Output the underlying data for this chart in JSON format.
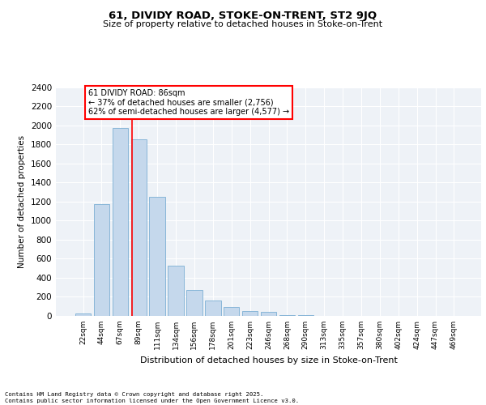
{
  "title1": "61, DIVIDY ROAD, STOKE-ON-TRENT, ST2 9JQ",
  "title2": "Size of property relative to detached houses in Stoke-on-Trent",
  "xlabel": "Distribution of detached houses by size in Stoke-on-Trent",
  "ylabel": "Number of detached properties",
  "categories": [
    "22sqm",
    "44sqm",
    "67sqm",
    "89sqm",
    "111sqm",
    "134sqm",
    "156sqm",
    "178sqm",
    "201sqm",
    "223sqm",
    "246sqm",
    "268sqm",
    "290sqm",
    "313sqm",
    "335sqm",
    "357sqm",
    "380sqm",
    "402sqm",
    "424sqm",
    "447sqm",
    "469sqm"
  ],
  "values": [
    25,
    1175,
    1975,
    1850,
    1250,
    525,
    275,
    160,
    95,
    50,
    40,
    5,
    5,
    3,
    2,
    2,
    2,
    2,
    2,
    2,
    2
  ],
  "bar_color": "#c5d8ec",
  "bar_edge_color": "#7bafd4",
  "vline_color": "red",
  "vline_x": 2.65,
  "annotation_text": "61 DIVIDY ROAD: 86sqm\n← 37% of detached houses are smaller (2,756)\n62% of semi-detached houses are larger (4,577) →",
  "annotation_box_color": "white",
  "annotation_box_edge": "red",
  "ylim": [
    0,
    2400
  ],
  "yticks": [
    0,
    200,
    400,
    600,
    800,
    1000,
    1200,
    1400,
    1600,
    1800,
    2000,
    2200,
    2400
  ],
  "footer1": "Contains HM Land Registry data © Crown copyright and database right 2025.",
  "footer2": "Contains public sector information licensed under the Open Government Licence v3.0.",
  "bg_color": "#eef2f7",
  "grid_color": "#ffffff"
}
